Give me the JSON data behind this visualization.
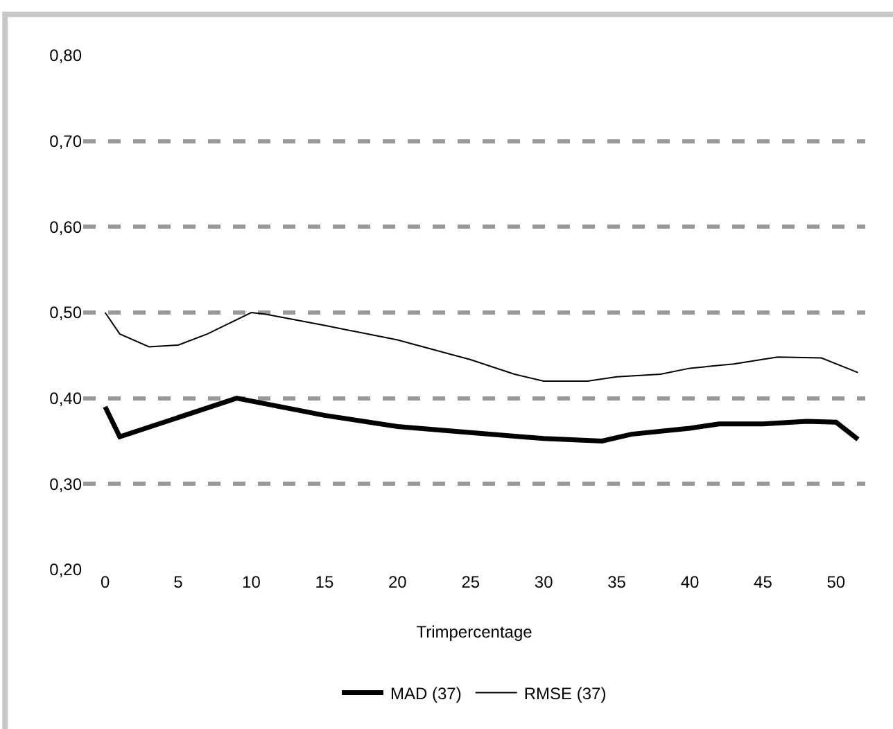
{
  "chart_data": {
    "type": "line",
    "xlabel": "Trimpercentage",
    "xlim": [
      -1.5,
      52
    ],
    "xticks": [
      0,
      5,
      10,
      15,
      20,
      25,
      30,
      35,
      40,
      45,
      50
    ],
    "ylim": [
      0.2,
      0.8
    ],
    "yticks": [
      {
        "value": 0.2,
        "label": "0,20"
      },
      {
        "value": 0.3,
        "label": "0,30"
      },
      {
        "value": 0.4,
        "label": "0,40"
      },
      {
        "value": 0.5,
        "label": "0,50"
      },
      {
        "value": 0.6,
        "label": "0,60"
      },
      {
        "value": 0.7,
        "label": "0,70"
      },
      {
        "value": 0.8,
        "label": "0,80"
      }
    ],
    "grid": "y",
    "legend": "bottom",
    "marker": "none",
    "series": [
      {
        "name": "MAD (37)",
        "color": "#000000",
        "x": [
          0,
          1,
          9,
          15,
          20,
          25,
          30,
          34,
          36,
          40,
          42,
          45,
          48,
          50,
          51.5
        ],
        "values": [
          0.39,
          0.355,
          0.4,
          0.38,
          0.367,
          0.36,
          0.353,
          0.35,
          0.358,
          0.365,
          0.37,
          0.37,
          0.373,
          0.372,
          0.352
        ]
      },
      {
        "name": "RMSE (37)",
        "color": "#000000",
        "x": [
          0,
          1,
          3,
          5,
          7,
          10,
          11,
          15,
          20,
          25,
          28,
          30,
          33,
          35,
          38,
          40,
          43,
          46,
          49,
          51.5
        ],
        "values": [
          0.5,
          0.475,
          0.46,
          0.462,
          0.475,
          0.5,
          0.498,
          0.485,
          0.468,
          0.445,
          0.428,
          0.42,
          0.42,
          0.425,
          0.428,
          0.435,
          0.44,
          0.448,
          0.447,
          0.43
        ]
      }
    ]
  }
}
